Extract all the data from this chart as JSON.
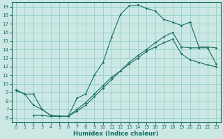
{
  "xlabel": "Humidex (Indice chaleur)",
  "bg_color": "#cce8e4",
  "grid_color": "#99d4cc",
  "line_color": "#1a6e62",
  "xlim": [
    -0.5,
    23.5
  ],
  "ylim": [
    5.5,
    19.5
  ],
  "xticks": [
    0,
    1,
    2,
    3,
    4,
    5,
    6,
    7,
    8,
    9,
    10,
    11,
    12,
    13,
    14,
    15,
    16,
    17,
    18,
    19,
    20,
    21,
    22,
    23
  ],
  "yticks": [
    6,
    7,
    8,
    9,
    10,
    11,
    12,
    13,
    14,
    15,
    16,
    17,
    18,
    19
  ],
  "line1_x": [
    0,
    1,
    2,
    3,
    4,
    5,
    6,
    7,
    8,
    9,
    10,
    11,
    12,
    13,
    14,
    15,
    16,
    17,
    18,
    19,
    20,
    21,
    22,
    23
  ],
  "line1_y": [
    9.3,
    8.8,
    8.8,
    7.0,
    6.3,
    6.2,
    6.2,
    8.3,
    8.8,
    11.0,
    12.5,
    15.5,
    18.1,
    19.1,
    19.2,
    18.8,
    18.5,
    17.5,
    17.2,
    16.8,
    17.2,
    14.3,
    14.3,
    14.2
  ],
  "line2_x": [
    2,
    3,
    4,
    5,
    6,
    7,
    8,
    9,
    10,
    11,
    12,
    13,
    14,
    15,
    16,
    17,
    18,
    19,
    20,
    21,
    22,
    23
  ],
  "line2_y": [
    6.3,
    6.3,
    6.2,
    6.2,
    6.2,
    6.8,
    7.5,
    8.5,
    9.5,
    10.5,
    11.5,
    12.5,
    13.3,
    14.0,
    14.8,
    15.5,
    16.0,
    14.3,
    14.2,
    14.2,
    14.2,
    12.3
  ],
  "line3_x": [
    0,
    1,
    2,
    3,
    4,
    5,
    6,
    7,
    8,
    9,
    10,
    11,
    12,
    13,
    14,
    15,
    16,
    17,
    18,
    19,
    20,
    21,
    22,
    23
  ],
  "line3_y": [
    9.2,
    8.8,
    7.5,
    7.0,
    6.3,
    6.2,
    6.2,
    7.0,
    7.8,
    8.8,
    9.8,
    10.8,
    11.5,
    12.3,
    13.0,
    13.8,
    14.3,
    14.8,
    15.2,
    13.5,
    12.8,
    12.5,
    12.2,
    12.0
  ]
}
